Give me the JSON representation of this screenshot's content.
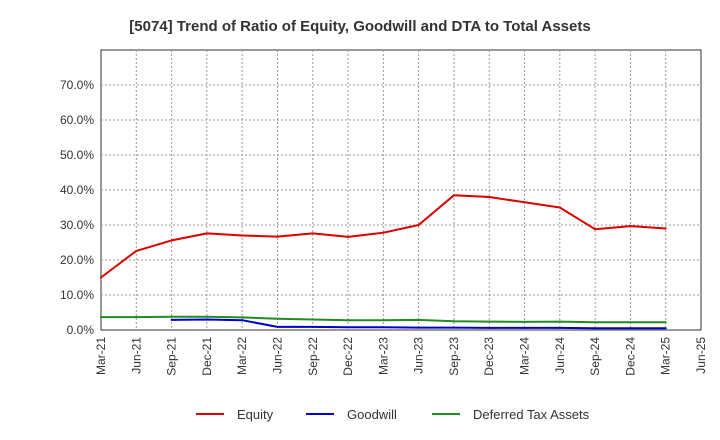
{
  "chart_data": {
    "type": "line",
    "title": "[5074]  Trend of Ratio of Equity, Goodwill and DTA to Total Assets",
    "xlabel": "",
    "ylabel": "",
    "ylim": [
      0,
      80
    ],
    "y_ticks": [
      0,
      10,
      20,
      30,
      40,
      50,
      60,
      70
    ],
    "y_tick_labels": [
      "0.0%",
      "10.0%",
      "20.0%",
      "30.0%",
      "40.0%",
      "50.0%",
      "60.0%",
      "70.0%"
    ],
    "x_tick_labels": [
      "Mar-21",
      "Jun-21",
      "Sep-21",
      "Dec-21",
      "Mar-22",
      "Jun-22",
      "Sep-22",
      "Dec-22",
      "Mar-23",
      "Jun-23",
      "Sep-23",
      "Dec-23",
      "Mar-24",
      "Jun-24",
      "Sep-24",
      "Dec-24",
      "Mar-25",
      "Jun-25"
    ],
    "grid": true,
    "legend_position": "bottom",
    "series": [
      {
        "name": "Equity",
        "color": "#dd0000",
        "start_index": 0,
        "values": [
          15.0,
          22.6,
          25.6,
          27.6,
          27.0,
          26.7,
          27.6,
          26.6,
          27.8,
          30.0,
          38.5,
          38.0,
          36.5,
          35.0,
          28.8,
          29.7,
          29.0
        ]
      },
      {
        "name": "Goodwill",
        "color": "#0000cc",
        "start_index": 2,
        "values": [
          2.9,
          3.0,
          2.8,
          0.9,
          0.9,
          0.8,
          0.8,
          0.7,
          0.7,
          0.6,
          0.6,
          0.6,
          0.5,
          0.5,
          0.5
        ]
      },
      {
        "name": "Deferred Tax Assets",
        "color": "#228b22",
        "start_index": 0,
        "values": [
          3.7,
          3.7,
          3.8,
          3.8,
          3.6,
          3.2,
          3.0,
          2.8,
          2.8,
          2.9,
          2.5,
          2.4,
          2.3,
          2.4,
          2.2,
          2.2,
          2.2
        ]
      }
    ]
  }
}
